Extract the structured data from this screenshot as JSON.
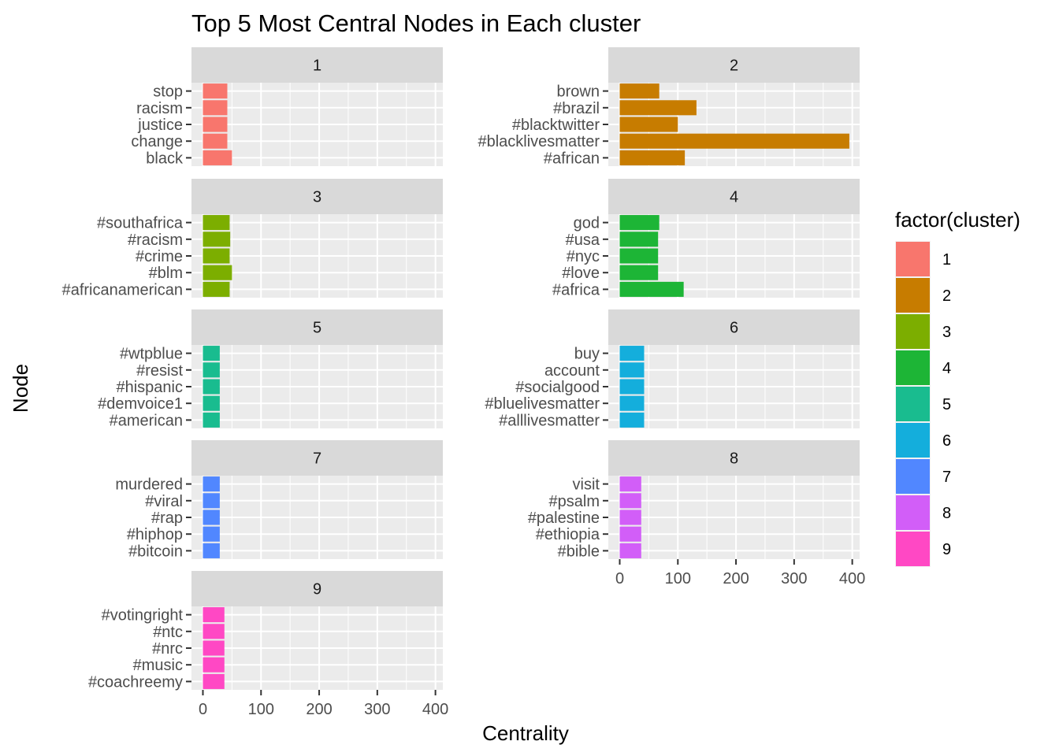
{
  "chart_data": {
    "type": "bar",
    "orientation": "horizontal",
    "title": "Top 5 Most Central Nodes in Each cluster",
    "xlabel": "Centrality",
    "ylabel": "Node",
    "xlim": [
      0,
      400
    ],
    "x_ticks": [
      "0",
      "100",
      "200",
      "300",
      "400"
    ],
    "grid": true,
    "legend": {
      "title": "factor(cluster)",
      "position": "right",
      "entries": [
        "1",
        "2",
        "3",
        "4",
        "5",
        "6",
        "7",
        "8",
        "9"
      ]
    },
    "colors": [
      "#F8766D",
      "#C77C00",
      "#7CAE00",
      "#1DB536",
      "#19BC8F",
      "#14AEDC",
      "#5187FF",
      "#D25EF8",
      "#FF48C4"
    ],
    "panels": [
      {
        "cluster": "1",
        "nodes": [
          "black",
          "change",
          "justice",
          "racism",
          "stop"
        ],
        "values": [
          50,
          42,
          42,
          42,
          42
        ]
      },
      {
        "cluster": "2",
        "nodes": [
          "#african",
          "#blacklivesmatter",
          "#blacktwitter",
          "#brazil",
          "brown"
        ],
        "values": [
          112,
          395,
          100,
          132,
          68
        ]
      },
      {
        "cluster": "3",
        "nodes": [
          "#africanamerican",
          "#blm",
          "#crime",
          "#racism",
          "#southafrica"
        ],
        "values": [
          46,
          50,
          46,
          47,
          46
        ]
      },
      {
        "cluster": "4",
        "nodes": [
          "#africa",
          "#love",
          "#nyc",
          "#usa",
          "god"
        ],
        "values": [
          110,
          66,
          66,
          66,
          68
        ]
      },
      {
        "cluster": "5",
        "nodes": [
          "#american",
          "#demvoice1",
          "#hispanic",
          "#resist",
          "#wtpblue"
        ],
        "values": [
          29,
          29,
          29,
          29,
          29
        ]
      },
      {
        "cluster": "6",
        "nodes": [
          "#alllivesmatter",
          "#bluelivesmatter",
          "#socialgood",
          "account",
          "buy"
        ],
        "values": [
          42,
          42,
          42,
          42,
          42
        ]
      },
      {
        "cluster": "7",
        "nodes": [
          "#bitcoin",
          "#hiphop",
          "#rap",
          "#viral",
          "murdered"
        ],
        "values": [
          29,
          29,
          29,
          29,
          29
        ]
      },
      {
        "cluster": "8",
        "nodes": [
          "#bible",
          "#ethiopia",
          "#palestine",
          "#psalm",
          "visit"
        ],
        "values": [
          37,
          37,
          37,
          37,
          37
        ]
      },
      {
        "cluster": "9",
        "nodes": [
          "#coachreemy",
          "#music",
          "#nrc",
          "#ntc",
          "#votingright"
        ],
        "values": [
          37,
          37,
          37,
          37,
          37
        ]
      }
    ]
  }
}
